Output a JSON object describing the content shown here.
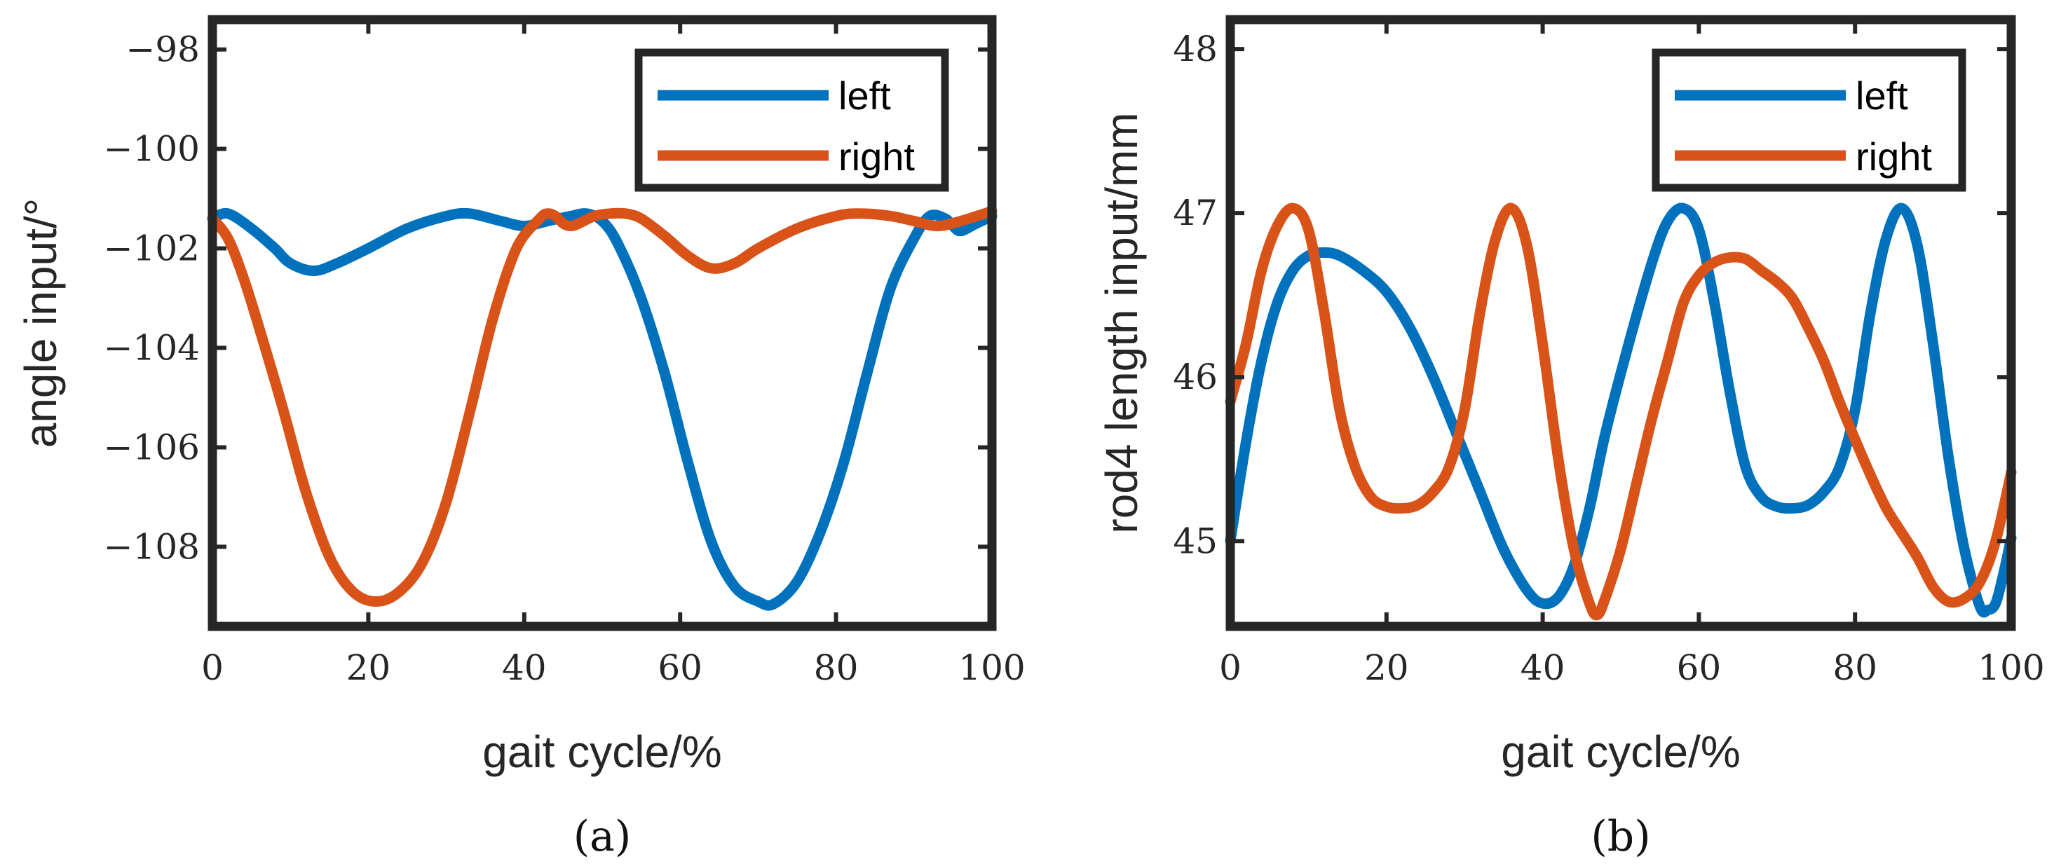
{
  "colors": {
    "left": "#0072BD",
    "right": "#D95319"
  },
  "chart_data": [
    {
      "type": "line",
      "caption": "(a)",
      "xlabel": "gait cycle/%",
      "ylabel": "angle input/°",
      "xlim": [
        0,
        100
      ],
      "ylim": [
        -109.6,
        -97.4
      ],
      "xticks": [
        0,
        20,
        40,
        60,
        80,
        100
      ],
      "yticks": [
        -98,
        -100,
        -102,
        -104,
        -106,
        -108
      ],
      "xtick_labels": [
        "0",
        "20",
        "40",
        "60",
        "80",
        "100"
      ],
      "ytick_labels": [
        "−98",
        "−100",
        "−102",
        "−104",
        "−106",
        "−108"
      ],
      "legend": {
        "location": "top-right",
        "entries": [
          "left",
          "right"
        ]
      },
      "series": [
        {
          "name": "left",
          "points": [
            [
              0,
              -101.4
            ],
            [
              2,
              -101.3
            ],
            [
              5,
              -101.6
            ],
            [
              8,
              -102.0
            ],
            [
              10,
              -102.3
            ],
            [
              13,
              -102.45
            ],
            [
              16,
              -102.3
            ],
            [
              20,
              -102.0
            ],
            [
              25,
              -101.6
            ],
            [
              30,
              -101.35
            ],
            [
              33,
              -101.3
            ],
            [
              37,
              -101.45
            ],
            [
              40,
              -101.55
            ],
            [
              43,
              -101.45
            ],
            [
              46,
              -101.35
            ],
            [
              48,
              -101.3
            ],
            [
              50,
              -101.45
            ],
            [
              52,
              -101.9
            ],
            [
              55,
              -103.0
            ],
            [
              58,
              -104.5
            ],
            [
              61,
              -106.3
            ],
            [
              64,
              -107.9
            ],
            [
              67,
              -108.8
            ],
            [
              70,
              -109.1
            ],
            [
              72,
              -109.15
            ],
            [
              75,
              -108.7
            ],
            [
              78,
              -107.7
            ],
            [
              81,
              -106.3
            ],
            [
              84,
              -104.5
            ],
            [
              87,
              -102.8
            ],
            [
              90,
              -101.8
            ],
            [
              92,
              -101.35
            ],
            [
              94,
              -101.4
            ],
            [
              95,
              -101.55
            ],
            [
              96,
              -101.65
            ],
            [
              98,
              -101.5
            ],
            [
              100,
              -101.35
            ]
          ]
        },
        {
          "name": "right",
          "points": [
            [
              0,
              -101.4
            ],
            [
              2,
              -101.8
            ],
            [
              4,
              -102.6
            ],
            [
              6,
              -103.6
            ],
            [
              9,
              -105.2
            ],
            [
              12,
              -106.9
            ],
            [
              15,
              -108.2
            ],
            [
              18,
              -108.9
            ],
            [
              21,
              -109.1
            ],
            [
              24,
              -108.9
            ],
            [
              27,
              -108.3
            ],
            [
              30,
              -107.1
            ],
            [
              33,
              -105.3
            ],
            [
              36,
              -103.4
            ],
            [
              39,
              -102.0
            ],
            [
              42,
              -101.4
            ],
            [
              43,
              -101.3
            ],
            [
              44,
              -101.35
            ],
            [
              45,
              -101.5
            ],
            [
              46,
              -101.55
            ],
            [
              47,
              -101.5
            ],
            [
              49,
              -101.35
            ],
            [
              51,
              -101.3
            ],
            [
              53,
              -101.3
            ],
            [
              55,
              -101.4
            ],
            [
              58,
              -101.75
            ],
            [
              61,
              -102.15
            ],
            [
              64,
              -102.4
            ],
            [
              67,
              -102.3
            ],
            [
              70,
              -102.0
            ],
            [
              75,
              -101.6
            ],
            [
              80,
              -101.35
            ],
            [
              83,
              -101.3
            ],
            [
              87,
              -101.35
            ],
            [
              90,
              -101.45
            ],
            [
              93,
              -101.55
            ],
            [
              96,
              -101.45
            ],
            [
              100,
              -101.25
            ]
          ]
        }
      ]
    },
    {
      "type": "line",
      "caption": "(b)",
      "xlabel": "gait cycle/%",
      "ylabel": "rod4 length input/mm",
      "xlim": [
        0,
        100
      ],
      "ylim": [
        44.48,
        48.18
      ],
      "xticks": [
        0,
        20,
        40,
        60,
        80,
        100
      ],
      "yticks": [
        45,
        46,
        47,
        48
      ],
      "xtick_labels": [
        "0",
        "20",
        "40",
        "60",
        "80",
        "100"
      ],
      "ytick_labels": [
        "45",
        "46",
        "47",
        "48"
      ],
      "legend": {
        "location": "top-right",
        "entries": [
          "left",
          "right"
        ]
      },
      "series": [
        {
          "name": "left",
          "points": [
            [
              0,
              45.0
            ],
            [
              2,
              45.6
            ],
            [
              4,
              46.1
            ],
            [
              6,
              46.45
            ],
            [
              8,
              46.65
            ],
            [
              10,
              46.74
            ],
            [
              12,
              46.76
            ],
            [
              14,
              46.74
            ],
            [
              17,
              46.65
            ],
            [
              20,
              46.52
            ],
            [
              23,
              46.3
            ],
            [
              26,
              46.0
            ],
            [
              29,
              45.65
            ],
            [
              32,
              45.3
            ],
            [
              35,
              44.95
            ],
            [
              38,
              44.7
            ],
            [
              40,
              44.62
            ],
            [
              42,
              44.66
            ],
            [
              44,
              44.85
            ],
            [
              46,
              45.2
            ],
            [
              48,
              45.65
            ],
            [
              51,
              46.2
            ],
            [
              54,
              46.7
            ],
            [
              56,
              46.95
            ],
            [
              58,
              47.03
            ],
            [
              60,
              46.9
            ],
            [
              62,
              46.45
            ],
            [
              64,
              45.9
            ],
            [
              66,
              45.45
            ],
            [
              68,
              45.27
            ],
            [
              70,
              45.21
            ],
            [
              72,
              45.2
            ],
            [
              74,
              45.22
            ],
            [
              76,
              45.3
            ],
            [
              78,
              45.45
            ],
            [
              80,
              45.8
            ],
            [
              82,
              46.4
            ],
            [
              84,
              46.85
            ],
            [
              86,
              47.03
            ],
            [
              88,
              46.8
            ],
            [
              90,
              46.2
            ],
            [
              92,
              45.5
            ],
            [
              94,
              44.95
            ],
            [
              96,
              44.6
            ],
            [
              97,
              44.58
            ],
            [
              98,
              44.62
            ],
            [
              99,
              44.8
            ],
            [
              100,
              45.02
            ]
          ]
        },
        {
          "name": "right",
          "points": [
            [
              0,
              45.85
            ],
            [
              2,
              46.2
            ],
            [
              4,
              46.65
            ],
            [
              6,
              46.92
            ],
            [
              8,
              47.03
            ],
            [
              10,
              46.9
            ],
            [
              12,
              46.4
            ],
            [
              14,
              45.8
            ],
            [
              16,
              45.45
            ],
            [
              18,
              45.27
            ],
            [
              20,
              45.21
            ],
            [
              22,
              45.2
            ],
            [
              24,
              45.22
            ],
            [
              26,
              45.3
            ],
            [
              28,
              45.45
            ],
            [
              30,
              45.8
            ],
            [
              32,
              46.4
            ],
            [
              34,
              46.85
            ],
            [
              36,
              47.03
            ],
            [
              38,
              46.8
            ],
            [
              40,
              46.2
            ],
            [
              42,
              45.5
            ],
            [
              44,
              44.95
            ],
            [
              46,
              44.62
            ],
            [
              47,
              44.55
            ],
            [
              48,
              44.65
            ],
            [
              50,
              44.95
            ],
            [
              52,
              45.35
            ],
            [
              54,
              45.75
            ],
            [
              56,
              46.1
            ],
            [
              58,
              46.45
            ],
            [
              60,
              46.62
            ],
            [
              62,
              46.7
            ],
            [
              64,
              46.73
            ],
            [
              66,
              46.72
            ],
            [
              68,
              46.65
            ],
            [
              70,
              46.58
            ],
            [
              72,
              46.48
            ],
            [
              74,
              46.3
            ],
            [
              76,
              46.1
            ],
            [
              78,
              45.85
            ],
            [
              80,
              45.62
            ],
            [
              82,
              45.4
            ],
            [
              84,
              45.2
            ],
            [
              86,
              45.05
            ],
            [
              88,
              44.9
            ],
            [
              90,
              44.72
            ],
            [
              92,
              44.63
            ],
            [
              94,
              44.65
            ],
            [
              96,
              44.75
            ],
            [
              98,
              45.0
            ],
            [
              100,
              45.42
            ]
          ]
        }
      ]
    }
  ]
}
